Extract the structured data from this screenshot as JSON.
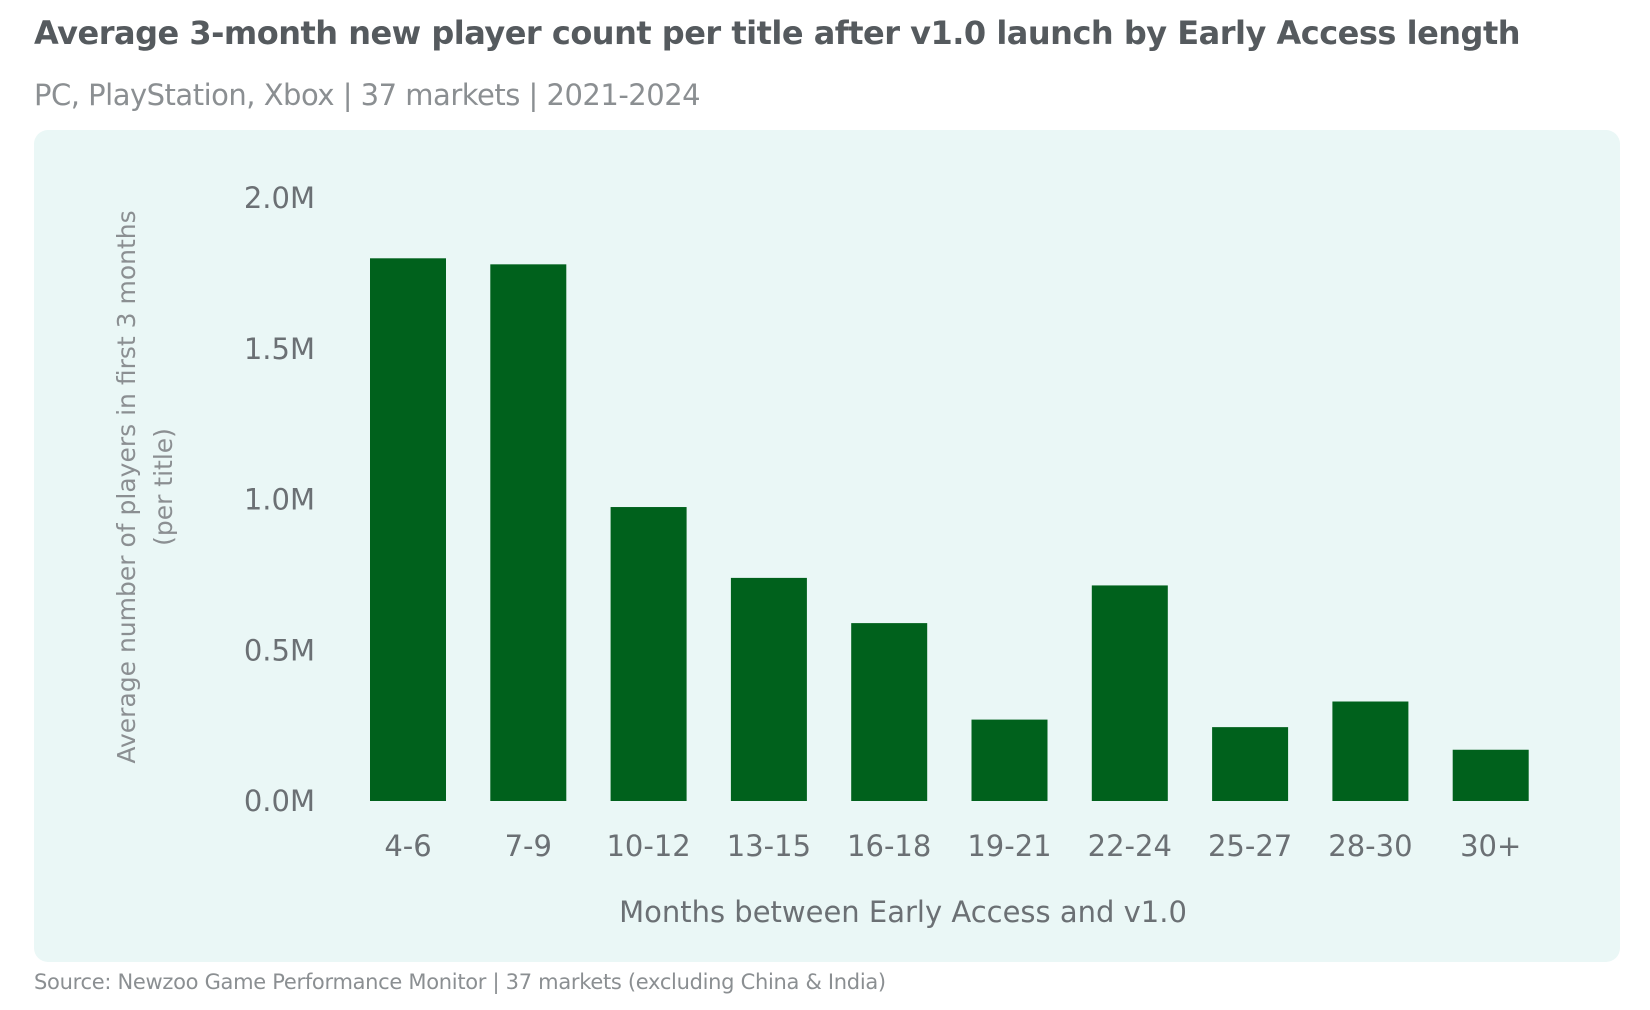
{
  "header": {
    "title": "Average 3-month new player count per title after v1.0 launch by Early Access length",
    "subtitle": "PC, PlayStation, Xbox | 37 markets | 2021-2024"
  },
  "footer": {
    "source": "Source: Newzoo Game Performance Monitor | 37 markets (excluding China & India)"
  },
  "colors": {
    "bar": "#00611c",
    "panel": "#eaf7f6"
  },
  "chart_data": {
    "type": "bar",
    "title": "Average 3-month new player count per title after v1.0 launch by Early Access length",
    "xlabel": "Months between Early Access and v1.0",
    "ylabel": "Average number of players in first 3 months",
    "ylabel2": "(per title)",
    "categories": [
      "4-6",
      "7-9",
      "10-12",
      "13-15",
      "16-18",
      "19-21",
      "22-24",
      "25-27",
      "28-30",
      "30+"
    ],
    "values": [
      1.8,
      1.78,
      0.975,
      0.74,
      0.59,
      0.27,
      0.715,
      0.245,
      0.33,
      0.17
    ],
    "unit": "M",
    "ylim": [
      0,
      2.0
    ],
    "yticks": [
      "0.0M",
      "0.5M",
      "1.0M",
      "1.5M",
      "2.0M"
    ],
    "grid": false,
    "legend": "none"
  }
}
